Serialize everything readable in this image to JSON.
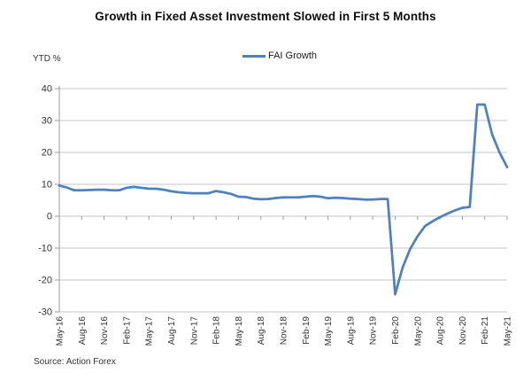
{
  "title": "Growth in Fixed Asset Investment Slowed in First 5 Months",
  "legend": {
    "label": "FAI Growth",
    "color": "#4f81bd"
  },
  "y_axis_label": "YTD %",
  "source": "Source: Action Forex",
  "chart_data": {
    "type": "line",
    "title": "Growth in Fixed Asset Investment Slowed in First 5 Months",
    "ylabel": "YTD %",
    "xlabel": "",
    "ylim": [
      -30,
      40
    ],
    "y_ticks": [
      40,
      30,
      20,
      10,
      0,
      -10,
      -20,
      -30
    ],
    "grid": "horizontal",
    "legend_position": "top-center",
    "line_color": "#4f81bd",
    "gridline_color": "#c6c6c6",
    "axis_color": "#9a9a9a",
    "tick_label_color": "#333333",
    "x": [
      "May-16",
      "Jun-16",
      "Jul-16",
      "Aug-16",
      "Sep-16",
      "Oct-16",
      "Nov-16",
      "Dec-16",
      "Jan-17",
      "Feb-17",
      "Mar-17",
      "Apr-17",
      "May-17",
      "Jun-17",
      "Jul-17",
      "Aug-17",
      "Sep-17",
      "Oct-17",
      "Nov-17",
      "Dec-17",
      "Jan-18",
      "Feb-18",
      "Mar-18",
      "Apr-18",
      "May-18",
      "Jun-18",
      "Jul-18",
      "Aug-18",
      "Sep-18",
      "Oct-18",
      "Nov-18",
      "Dec-18",
      "Jan-19",
      "Feb-19",
      "Mar-19",
      "Apr-19",
      "May-19",
      "Jun-19",
      "Jul-19",
      "Aug-19",
      "Sep-19",
      "Oct-19",
      "Nov-19",
      "Dec-19",
      "Jan-20",
      "Feb-20",
      "Mar-20",
      "Apr-20",
      "May-20",
      "Jun-20",
      "Jul-20",
      "Aug-20",
      "Sep-20",
      "Oct-20",
      "Nov-20",
      "Dec-20",
      "Jan-21",
      "Feb-21",
      "Mar-21",
      "Apr-21",
      "May-21"
    ],
    "x_tick_labels": [
      "May-16",
      "Aug-16",
      "Nov-16",
      "Feb-17",
      "May-17",
      "Aug-17",
      "Nov-17",
      "Feb-18",
      "May-18",
      "Aug-18",
      "Nov-18",
      "Feb-19",
      "May-19",
      "Aug-19",
      "Nov-19",
      "Feb-20",
      "May-20",
      "Aug-20",
      "Nov-20",
      "Feb-21",
      "May-21"
    ],
    "series": [
      {
        "name": "FAI Growth",
        "color": "#4f81bd",
        "values": [
          9.6,
          9.0,
          8.1,
          8.1,
          8.2,
          8.3,
          8.3,
          8.1,
          8.1,
          8.9,
          9.2,
          8.9,
          8.6,
          8.6,
          8.3,
          7.8,
          7.5,
          7.3,
          7.2,
          7.2,
          7.2,
          7.9,
          7.5,
          7.0,
          6.1,
          6.0,
          5.5,
          5.3,
          5.4,
          5.7,
          5.9,
          5.9,
          5.9,
          6.1,
          6.3,
          6.1,
          5.6,
          5.8,
          5.7,
          5.5,
          5.4,
          5.2,
          5.2,
          5.4,
          5.4,
          -24.5,
          -16.1,
          -10.3,
          -6.3,
          -3.1,
          -1.6,
          -0.3,
          0.8,
          1.8,
          2.6,
          2.9,
          35.0,
          35.0,
          25.6,
          19.9,
          15.4
        ]
      }
    ]
  }
}
